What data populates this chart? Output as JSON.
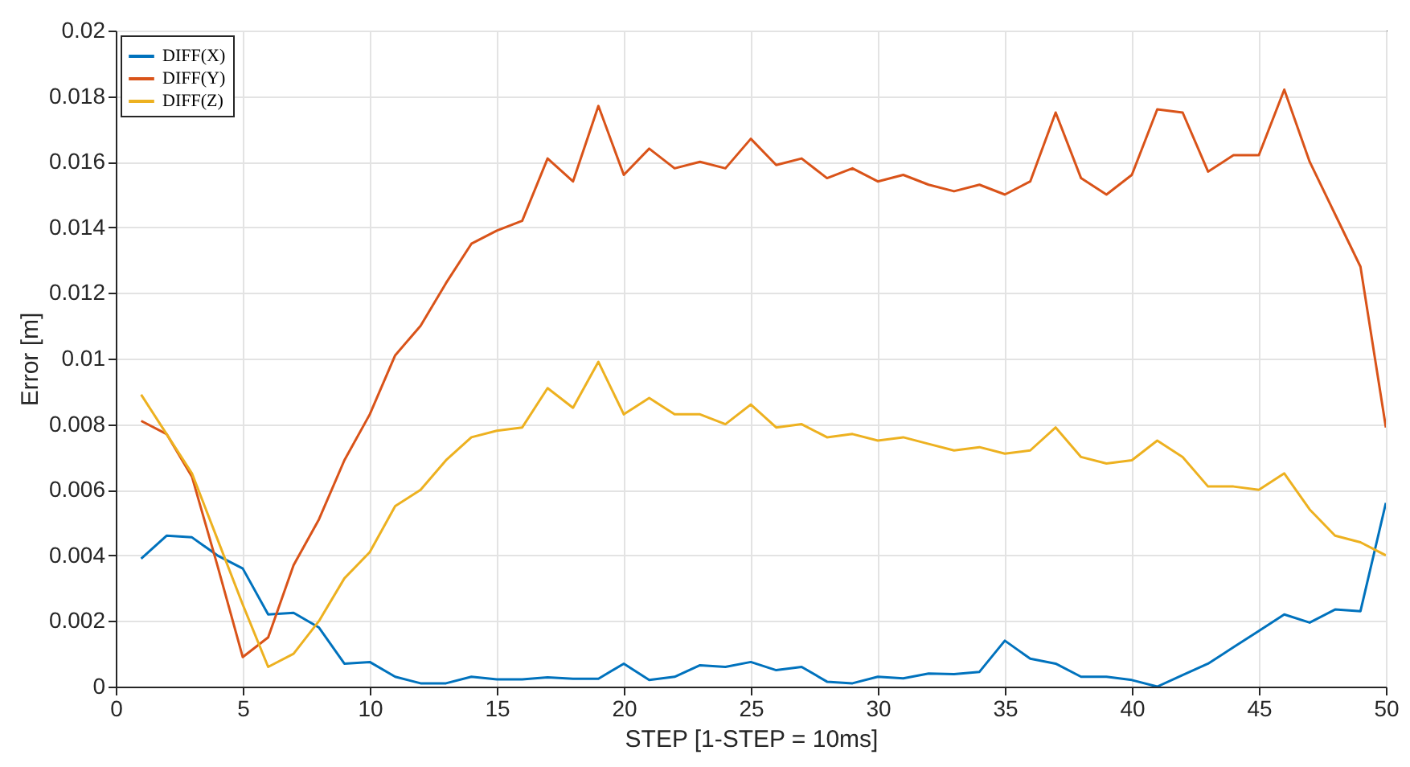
{
  "chart_data": {
    "type": "line",
    "xlabel": "STEP [1-STEP = 10ms]",
    "ylabel": "Error [m]",
    "x": [
      1,
      2,
      3,
      4,
      5,
      6,
      7,
      8,
      9,
      10,
      11,
      12,
      13,
      14,
      15,
      16,
      17,
      18,
      19,
      20,
      21,
      22,
      23,
      24,
      25,
      26,
      27,
      28,
      29,
      30,
      31,
      32,
      33,
      34,
      35,
      36,
      37,
      38,
      39,
      40,
      41,
      42,
      43,
      44,
      45,
      46,
      47,
      48,
      49,
      50
    ],
    "series": [
      {
        "name": "DIFF(X)",
        "color": "#0072bd",
        "values": [
          0.0039,
          0.0046,
          0.00455,
          0.004,
          0.0036,
          0.0022,
          0.00225,
          0.0018,
          0.0007,
          0.00075,
          0.0003,
          0.0001,
          0.0001,
          0.0003,
          0.00022,
          0.00022,
          0.00028,
          0.00024,
          0.00024,
          0.0007,
          0.0002,
          0.0003,
          0.00065,
          0.0006,
          0.00075,
          0.0005,
          0.0006,
          0.00015,
          0.0001,
          0.0003,
          0.00025,
          0.0004,
          0.00038,
          0.00045,
          0.0014,
          0.00085,
          0.0007,
          0.0003,
          0.0003,
          0.0002,
          0,
          0.00035,
          0.0007,
          0.0012,
          0.0017,
          0.0022,
          0.00195,
          0.00235,
          0.0023,
          0.0056
        ]
      },
      {
        "name": "DIFF(Y)",
        "color": "#d95319",
        "values": [
          0.0081,
          0.0077,
          0.0064,
          0.0037,
          0.0009,
          0.0015,
          0.0037,
          0.0051,
          0.0069,
          0.0083,
          0.0101,
          0.011,
          0.0123,
          0.0135,
          0.0139,
          0.0142,
          0.0161,
          0.0154,
          0.0177,
          0.0156,
          0.0164,
          0.0158,
          0.016,
          0.0158,
          0.0167,
          0.0159,
          0.0161,
          0.0155,
          0.0158,
          0.0154,
          0.0156,
          0.0153,
          0.0151,
          0.0153,
          0.015,
          0.0154,
          0.0175,
          0.0155,
          0.015,
          0.0156,
          0.0176,
          0.0175,
          0.0157,
          0.0162,
          0.0162,
          0.0182,
          0.016,
          0.0144,
          0.0128,
          0.0079
        ]
      },
      {
        "name": "DIFF(Z)",
        "color": "#edb120",
        "values": [
          0.0089,
          0.0077,
          0.0065,
          0.0045,
          0.0025,
          0.0006,
          0.001,
          0.002,
          0.0033,
          0.0041,
          0.0055,
          0.006,
          0.0069,
          0.0076,
          0.0078,
          0.0079,
          0.0091,
          0.0085,
          0.0099,
          0.0083,
          0.0088,
          0.0083,
          0.0083,
          0.008,
          0.0086,
          0.0079,
          0.008,
          0.0076,
          0.0077,
          0.0075,
          0.0076,
          0.0074,
          0.0072,
          0.0073,
          0.0071,
          0.0072,
          0.0079,
          0.007,
          0.0068,
          0.0069,
          0.0075,
          0.007,
          0.0061,
          0.0061,
          0.006,
          0.0065,
          0.0054,
          0.0046,
          0.0044,
          0.004
        ]
      }
    ],
    "xlim": [
      0,
      50
    ],
    "xticks": [
      0,
      5,
      10,
      15,
      20,
      25,
      30,
      35,
      40,
      45,
      50
    ],
    "ylim": [
      0,
      0.02
    ],
    "yticks": [
      0,
      0.002,
      0.004,
      0.006,
      0.008,
      0.01,
      0.012,
      0.014,
      0.016,
      0.018,
      0.02
    ],
    "grid": true,
    "legend": "top left",
    "marker": "none",
    "line_style": "solid"
  }
}
